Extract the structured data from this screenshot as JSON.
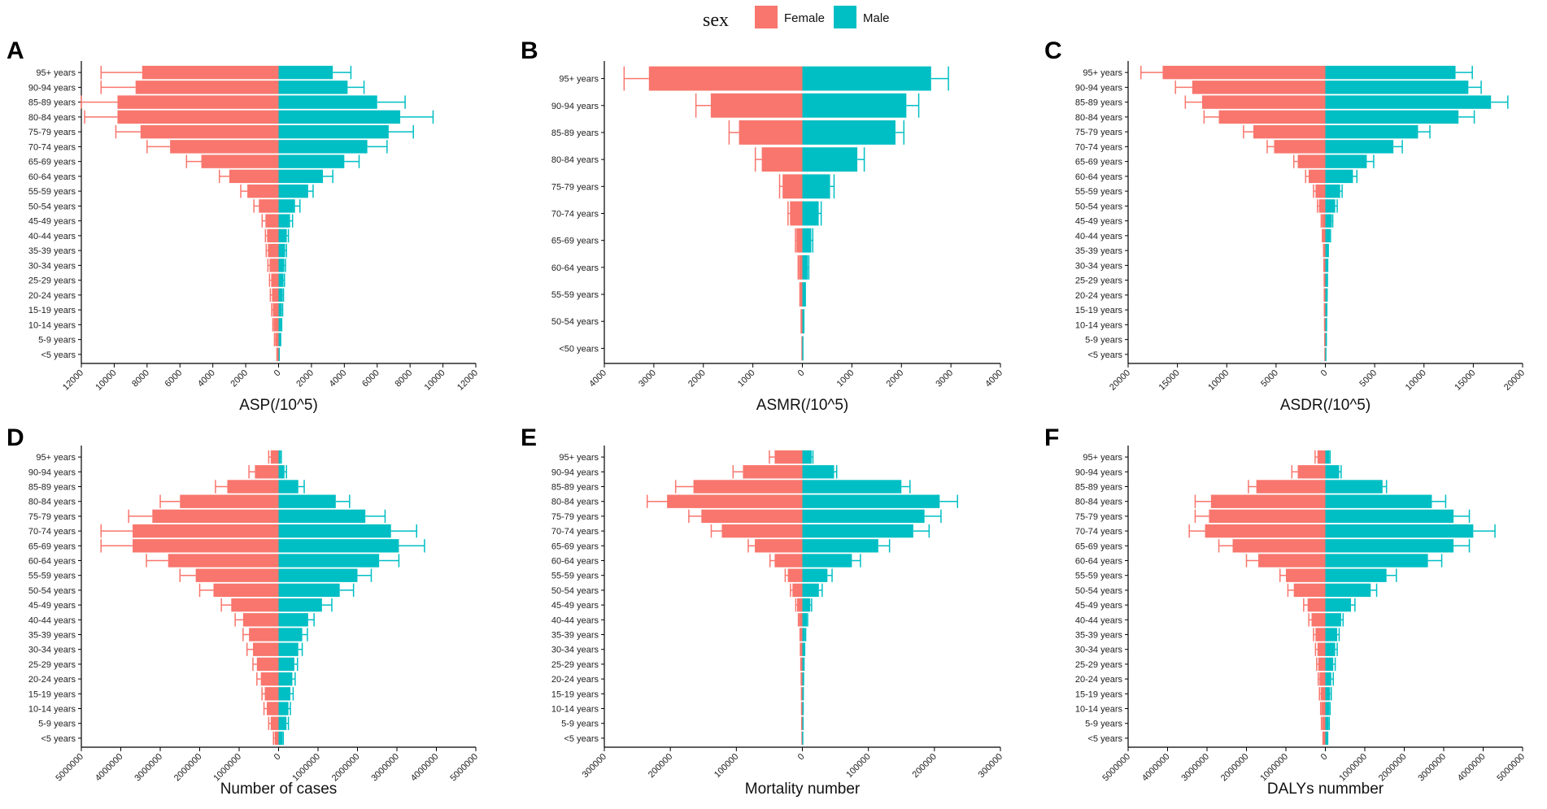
{
  "legend": {
    "title": "sex",
    "items": [
      {
        "label": "Female",
        "color": "#F8766D"
      },
      {
        "label": "Male",
        "color": "#00BFC4"
      }
    ]
  },
  "chart_data": [
    {
      "id": "A",
      "type": "bar",
      "orientation": "horizontal-diverging",
      "xlabel": "ASP(/10^5)",
      "xlim": [
        -12000,
        12000
      ],
      "ticks": [
        -12000,
        -10000,
        -8000,
        -6000,
        -4000,
        -2000,
        0,
        2000,
        4000,
        6000,
        8000,
        10000,
        12000
      ],
      "tick_labels": [
        "12000",
        "10000",
        "8000",
        "6000",
        "4000",
        "2000",
        "0",
        "2000",
        "4000",
        "6000",
        "8000",
        "10000",
        "12000"
      ],
      "categories": [
        "95+ years",
        "90-94 years",
        "85-89 years",
        "80-84 years",
        "75-79 years",
        "70-74 years",
        "65-69 years",
        "60-64 years",
        "55-59 years",
        "50-54 years",
        "45-49 years",
        "40-44 years",
        "35-39 years",
        "30-34 years",
        "25-29 years",
        "20-24 years",
        "15-19 years",
        "10-14 years",
        "5-9 years",
        "<5 years"
      ],
      "series": [
        {
          "name": "Female",
          "values": [
            8300,
            8700,
            9800,
            9800,
            8400,
            6600,
            4700,
            3000,
            1900,
            1200,
            800,
            700,
            650,
            550,
            450,
            400,
            350,
            300,
            200,
            80
          ],
          "upper": [
            10800,
            10800,
            12000,
            11800,
            9900,
            8000,
            5600,
            3600,
            2300,
            1500,
            1000,
            800,
            750,
            650,
            550,
            500,
            420,
            350,
            250,
            100
          ]
        },
        {
          "name": "Male",
          "values": [
            3300,
            4200,
            6000,
            7400,
            6700,
            5400,
            4000,
            2700,
            1800,
            1000,
            700,
            500,
            400,
            350,
            300,
            250,
            200,
            150,
            100,
            30
          ],
          "upper": [
            4400,
            5200,
            7700,
            9400,
            8200,
            6600,
            4900,
            3300,
            2100,
            1300,
            850,
            600,
            480,
            420,
            360,
            300,
            250,
            190,
            130,
            40
          ]
        }
      ]
    },
    {
      "id": "B",
      "type": "bar",
      "orientation": "horizontal-diverging",
      "xlabel": "ASMR(/10^5)",
      "xlim": [
        -4000,
        4000
      ],
      "ticks": [
        -4000,
        -3000,
        -2000,
        -1000,
        0,
        1000,
        2000,
        3000,
        4000
      ],
      "tick_labels": [
        "4000",
        "3000",
        "2000",
        "1000",
        "0",
        "1000",
        "2000",
        "3000",
        "4000"
      ],
      "categories": [
        "95+ years",
        "90-94 years",
        "85-89 years",
        "80-84 years",
        "75-79 years",
        "70-74 years",
        "65-69 years",
        "60-64 years",
        "55-59 years",
        "50-54 years",
        "<50 years"
      ],
      "series": [
        {
          "name": "Female",
          "values": [
            3100,
            1850,
            1280,
            820,
            400,
            250,
            120,
            70,
            40,
            20,
            5
          ],
          "upper": [
            3600,
            2150,
            1480,
            950,
            460,
            290,
            140,
            85,
            50,
            25,
            8
          ]
        },
        {
          "name": "Male",
          "values": [
            2600,
            2100,
            1880,
            1110,
            560,
            330,
            180,
            110,
            50,
            25,
            8
          ],
          "upper": [
            2950,
            2350,
            2050,
            1250,
            640,
            380,
            210,
            130,
            60,
            30,
            10
          ]
        }
      ]
    },
    {
      "id": "C",
      "type": "bar",
      "orientation": "horizontal-diverging",
      "xlabel": "ASDR(/10^5)",
      "xlim": [
        -20000,
        20000
      ],
      "ticks": [
        -20000,
        -15000,
        -10000,
        -5000,
        0,
        5000,
        10000,
        15000,
        20000
      ],
      "tick_labels": [
        "20000",
        "15000",
        "10000",
        "5000",
        "0",
        "5000",
        "10000",
        "15000",
        "20000"
      ],
      "categories": [
        "95+ years",
        "90-94 years",
        "85-89 years",
        "80-84 years",
        "75-79 years",
        "70-74 years",
        "65-69 years",
        "60-64 years",
        "55-59 years",
        "50-54 years",
        "45-49 years",
        "40-44 years",
        "35-39 years",
        "30-34 years",
        "25-29 years",
        "20-24 years",
        "15-19 years",
        "10-14 years",
        "5-9 years",
        "<5 years"
      ],
      "series": [
        {
          "name": "Female",
          "values": [
            16500,
            13500,
            12500,
            10800,
            7300,
            5200,
            2800,
            1700,
            1000,
            650,
            350,
            250,
            150,
            120,
            100,
            90,
            80,
            60,
            50,
            30
          ],
          "upper": [
            18700,
            15200,
            14200,
            12300,
            8300,
            5900,
            3200,
            2000,
            1200,
            800,
            420,
            300,
            180,
            150,
            120,
            110,
            100,
            80,
            60,
            40
          ]
        },
        {
          "name": "Male",
          "values": [
            13200,
            14500,
            16800,
            13500,
            9400,
            6900,
            4200,
            2800,
            1500,
            1000,
            650,
            450,
            250,
            200,
            180,
            150,
            130,
            100,
            80,
            40
          ],
          "upper": [
            14900,
            15800,
            18500,
            15100,
            10600,
            7800,
            4900,
            3200,
            1700,
            1200,
            750,
            520,
            300,
            240,
            210,
            180,
            150,
            120,
            100,
            50
          ]
        }
      ]
    },
    {
      "id": "D",
      "type": "bar",
      "orientation": "horizontal-diverging",
      "xlabel": "Number of cases",
      "xlim": [
        -5000000,
        5000000
      ],
      "ticks": [
        -5000000,
        -4000000,
        -3000000,
        -2000000,
        -1000000,
        0,
        1000000,
        2000000,
        3000000,
        4000000,
        5000000
      ],
      "tick_labels": [
        "5000000",
        "4000000",
        "3000000",
        "2000000",
        "1000000",
        "0",
        "1000000",
        "2000000",
        "3000000",
        "4000000",
        "5000000"
      ],
      "categories": [
        "95+ years",
        "90-94 years",
        "85-89 years",
        "80-84 years",
        "75-79 years",
        "70-74 years",
        "65-69 years",
        "60-64 years",
        "55-59 years",
        "50-54 years",
        "45-49 years",
        "40-44 years",
        "35-39 years",
        "30-34 years",
        "25-29 years",
        "20-24 years",
        "15-19 years",
        "10-14 years",
        "5-9 years",
        "<5 years"
      ],
      "series": [
        {
          "name": "Female",
          "values": [
            200000,
            600000,
            1300000,
            2500000,
            3200000,
            3700000,
            3700000,
            2800000,
            2100000,
            1650000,
            1200000,
            900000,
            750000,
            650000,
            550000,
            450000,
            350000,
            300000,
            200000,
            100000
          ],
          "upper": [
            250000,
            750000,
            1600000,
            3000000,
            3800000,
            4500000,
            4500000,
            3350000,
            2500000,
            2000000,
            1450000,
            1100000,
            900000,
            800000,
            650000,
            550000,
            420000,
            370000,
            250000,
            130000
          ]
        },
        {
          "name": "Male",
          "values": [
            50000,
            150000,
            500000,
            1450000,
            2200000,
            2850000,
            3050000,
            2550000,
            2000000,
            1550000,
            1100000,
            750000,
            600000,
            500000,
            400000,
            350000,
            300000,
            250000,
            200000,
            100000
          ],
          "upper": [
            70000,
            200000,
            650000,
            1800000,
            2700000,
            3500000,
            3700000,
            3050000,
            2350000,
            1900000,
            1350000,
            900000,
            730000,
            600000,
            480000,
            420000,
            370000,
            300000,
            250000,
            120000
          ]
        }
      ]
    },
    {
      "id": "E",
      "type": "bar",
      "orientation": "horizontal-diverging",
      "xlabel": "Mortality number",
      "xlim": [
        -300000,
        300000
      ],
      "ticks": [
        -300000,
        -200000,
        -100000,
        0,
        100000,
        200000,
        300000
      ],
      "tick_labels": [
        "300000",
        "200000",
        "100000",
        "0",
        "100000",
        "200000",
        "300000"
      ],
      "categories": [
        "95+ years",
        "90-94 years",
        "85-89 years",
        "80-84 years",
        "75-79 years",
        "70-74 years",
        "65-69 years",
        "60-64 years",
        "55-59 years",
        "50-54 years",
        "45-49 years",
        "40-44 years",
        "35-39 years",
        "30-34 years",
        "25-29 years",
        "20-24 years",
        "15-19 years",
        "10-14 years",
        "5-9 years",
        "<5 years"
      ],
      "series": [
        {
          "name": "Female",
          "values": [
            42000,
            90000,
            165000,
            205000,
            153000,
            122000,
            72000,
            42000,
            22000,
            15000,
            8000,
            5000,
            3000,
            2500,
            2000,
            1500,
            1200,
            1000,
            800,
            500
          ],
          "upper": [
            50000,
            105000,
            192000,
            235000,
            172000,
            138000,
            82000,
            49000,
            26000,
            18000,
            10000,
            6000,
            3500,
            3000,
            2400,
            1800,
            1400,
            1200,
            1000,
            600
          ]
        },
        {
          "name": "Male",
          "values": [
            14000,
            48000,
            150000,
            208000,
            185000,
            168000,
            115000,
            75000,
            38000,
            25000,
            12000,
            7000,
            4000,
            3000,
            2000,
            1500,
            1200,
            1000,
            800,
            500
          ],
          "upper": [
            16000,
            52000,
            163000,
            235000,
            210000,
            192000,
            132000,
            88000,
            45000,
            30000,
            14000,
            8000,
            5000,
            3500,
            2500,
            1800,
            1400,
            1200,
            1000,
            600
          ]
        }
      ]
    },
    {
      "id": "F",
      "type": "bar",
      "orientation": "horizontal-diverging",
      "xlabel": "DALYs nummber",
      "xlim": [
        -5000000,
        5000000
      ],
      "ticks": [
        -5000000,
        -4000000,
        -3000000,
        -2000000,
        -1000000,
        0,
        1000000,
        2000000,
        3000000,
        4000000,
        5000000
      ],
      "tick_labels": [
        "5000000",
        "4000000",
        "3000000",
        "2000000",
        "1000000",
        "0",
        "1000000",
        "2000000",
        "3000000",
        "4000000",
        "5000000"
      ],
      "categories": [
        "95+ years",
        "90-94 years",
        "85-89 years",
        "80-84 years",
        "75-79 years",
        "70-74 years",
        "65-69 years",
        "60-64 years",
        "55-59 years",
        "50-54 years",
        "45-49 years",
        "40-44 years",
        "35-39 years",
        "30-34 years",
        "25-29 years",
        "20-24 years",
        "15-19 years",
        "10-14 years",
        "5-9 years",
        "<5 years"
      ],
      "series": [
        {
          "name": "Female",
          "values": [
            200000,
            700000,
            1750000,
            2900000,
            2950000,
            3050000,
            2350000,
            1700000,
            1000000,
            800000,
            450000,
            350000,
            250000,
            200000,
            180000,
            150000,
            120000,
            100000,
            80000,
            50000
          ],
          "upper": [
            260000,
            850000,
            1950000,
            3300000,
            3300000,
            3450000,
            2700000,
            2000000,
            1150000,
            950000,
            550000,
            420000,
            300000,
            250000,
            220000,
            180000,
            150000,
            120000,
            100000,
            60000
          ]
        },
        {
          "name": "Male",
          "values": [
            100000,
            350000,
            1450000,
            2700000,
            3250000,
            3750000,
            3250000,
            2600000,
            1550000,
            1150000,
            650000,
            400000,
            300000,
            250000,
            200000,
            150000,
            120000,
            100000,
            80000,
            50000
          ],
          "upper": [
            120000,
            400000,
            1550000,
            3050000,
            3650000,
            4300000,
            3650000,
            2950000,
            1800000,
            1300000,
            750000,
            450000,
            350000,
            300000,
            250000,
            200000,
            150000,
            120000,
            100000,
            60000
          ]
        }
      ]
    }
  ]
}
